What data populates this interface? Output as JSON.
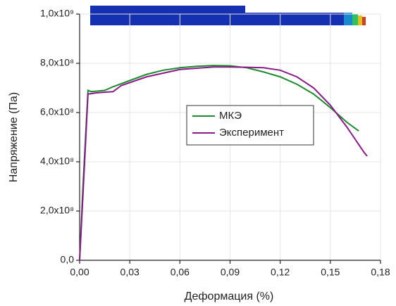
{
  "chart_data": {
    "type": "line",
    "x_label": "Деформация (%)",
    "y_label": "Напряжение (Па)",
    "xlim": [
      0,
      0.18
    ],
    "ylim": [
      0,
      1000000000
    ],
    "xticks": [
      {
        "value": 0,
        "label": "0,00"
      },
      {
        "value": 0.03,
        "label": "0,03"
      },
      {
        "value": 0.06,
        "label": "0,06"
      },
      {
        "value": 0.09,
        "label": "0,09"
      },
      {
        "value": 0.12,
        "label": "0,12"
      },
      {
        "value": 0.15,
        "label": "0,15"
      },
      {
        "value": 0.18,
        "label": "0,18"
      }
    ],
    "yticks": [
      {
        "value": 0,
        "label": "0,0"
      },
      {
        "value": 200000000,
        "label": "2,0x10⁸"
      },
      {
        "value": 400000000,
        "label": "4,0x10⁸"
      },
      {
        "value": 600000000,
        "label": "6,0x10⁸"
      },
      {
        "value": 800000000,
        "label": "8,0x10⁸"
      },
      {
        "value": 1000000000,
        "label": "1,0x10⁹"
      }
    ],
    "grid": true,
    "legend_position": "center",
    "series": [
      {
        "name": "МКЭ",
        "color": "#1a8a2a",
        "x": [
          0,
          0.002,
          0.005,
          0.007,
          0.015,
          0.02,
          0.03,
          0.04,
          0.05,
          0.06,
          0.07,
          0.08,
          0.09,
          0.1,
          0.11,
          0.12,
          0.13,
          0.14,
          0.15,
          0.16,
          0.167
        ],
        "values": [
          0,
          300000000,
          690000000,
          685000000,
          690000000,
          705000000,
          730000000,
          755000000,
          772000000,
          782000000,
          788000000,
          791000000,
          790000000,
          782000000,
          765000000,
          745000000,
          715000000,
          675000000,
          620000000,
          560000000,
          525000000
        ]
      },
      {
        "name": "Эксперимент",
        "color": "#8a1a8a",
        "x": [
          0,
          0.003,
          0.005,
          0.01,
          0.02,
          0.025,
          0.04,
          0.06,
          0.08,
          0.09,
          0.1,
          0.11,
          0.12,
          0.13,
          0.14,
          0.15,
          0.16,
          0.165,
          0.17,
          0.172
        ],
        "values": [
          0,
          400000000,
          675000000,
          680000000,
          685000000,
          710000000,
          745000000,
          775000000,
          785000000,
          785000000,
          784000000,
          782000000,
          772000000,
          745000000,
          700000000,
          630000000,
          540000000,
          490000000,
          440000000,
          423000000
        ]
      }
    ]
  }
}
